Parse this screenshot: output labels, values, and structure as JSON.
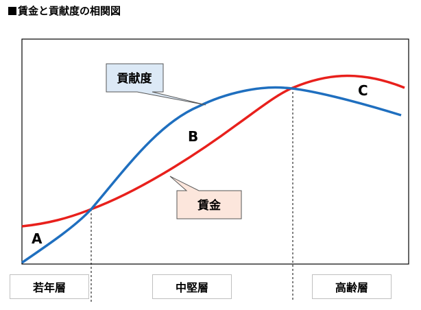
{
  "title": "賃金と貢献度の相関図",
  "callouts": {
    "contribution": "貢献度",
    "wage": "賃金"
  },
  "points": {
    "a": "A",
    "b": "B",
    "c": "C"
  },
  "stages": [
    "若年層",
    "中堅層",
    "高齢層"
  ],
  "colors": {
    "contribution_line": "#1f6fbf",
    "wage_line": "#e8201c",
    "contribution_callout_fill": "#dce9f6",
    "wage_callout_fill": "#fce6dc"
  }
}
